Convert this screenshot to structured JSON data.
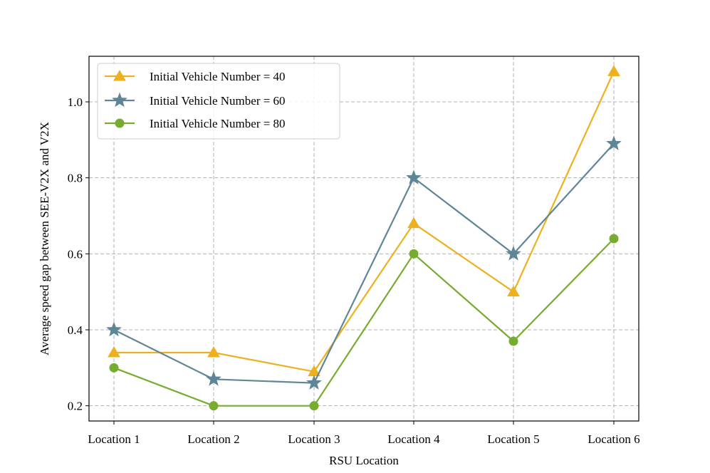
{
  "chart_data": {
    "type": "line",
    "title": "",
    "xlabel": "RSU Location",
    "ylabel": "Average speed gap between SEE-V2X and V2X",
    "categories": [
      "Location 1",
      "Location 2",
      "Location 3",
      "Location 4",
      "Location 5",
      "Location 6"
    ],
    "ylim": [
      0.16,
      1.12
    ],
    "yticks": [
      0.2,
      0.4,
      0.6,
      0.8,
      1.0
    ],
    "ytick_labels": [
      "0.2",
      "0.4",
      "0.6",
      "0.8",
      "1.0"
    ],
    "grid": true,
    "legend_position": "top-left",
    "series": [
      {
        "name": "Initial Vehicle Number = 40",
        "marker": "triangle",
        "color": "#EDB120",
        "values": [
          0.34,
          0.34,
          0.29,
          0.68,
          0.5,
          1.08
        ]
      },
      {
        "name": "Initial Vehicle Number = 60",
        "marker": "star",
        "color": "#5F8696",
        "values": [
          0.4,
          0.27,
          0.26,
          0.8,
          0.6,
          0.89
        ]
      },
      {
        "name": "Initial Vehicle Number = 80",
        "marker": "circle",
        "color": "#77AC30",
        "values": [
          0.3,
          0.2,
          0.2,
          0.6,
          0.37,
          0.64
        ]
      }
    ]
  }
}
